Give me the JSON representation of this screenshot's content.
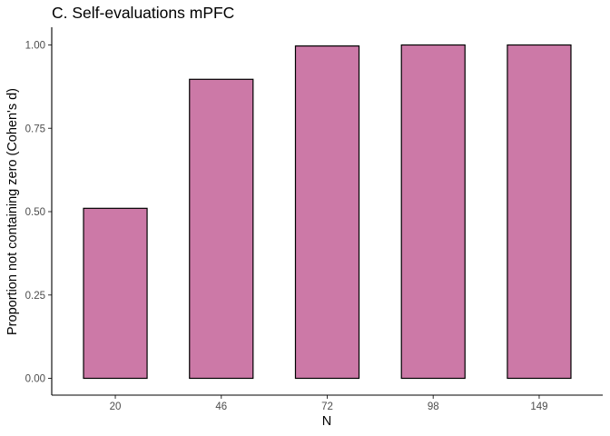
{
  "chart_data": {
    "type": "bar",
    "title": "C. Self-evaluations mPFC",
    "xlabel": "N",
    "ylabel": "Proportion not containing zero (Cohen's d)",
    "categories": [
      "20",
      "46",
      "72",
      "98",
      "149"
    ],
    "values": [
      0.51,
      0.897,
      0.997,
      1.0,
      1.0
    ],
    "ylim": [
      0,
      1.0
    ],
    "yticks": [
      0.0,
      0.25,
      0.5,
      0.75,
      1.0
    ],
    "ytick_labels": [
      "0.00",
      "0.25",
      "0.50",
      "0.75",
      "1.00"
    ],
    "bar_color": "#cc79a7",
    "bar_outline_color": "#000000",
    "grid": false,
    "legend": "none"
  }
}
